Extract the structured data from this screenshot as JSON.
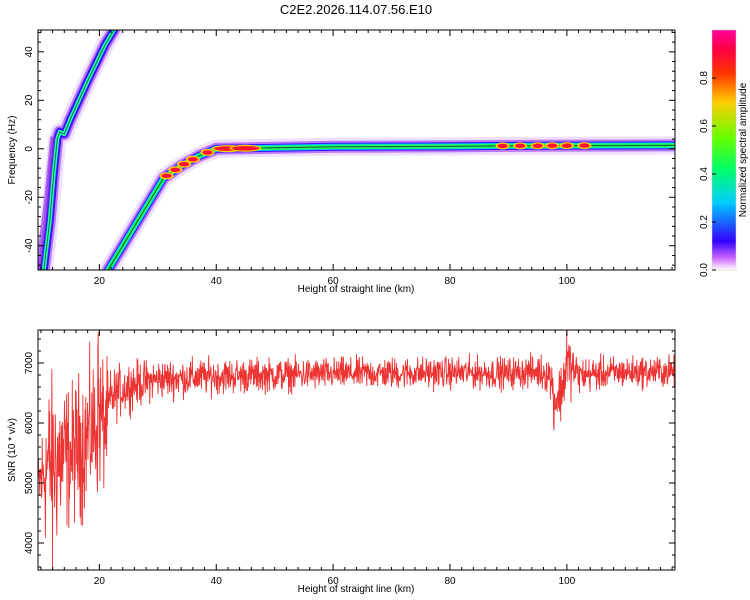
{
  "chart_data": [
    {
      "type": "heatmap",
      "title": "C2E2.2026.114.07.56.E10",
      "xlabel": "Height of straight line (km)",
      "ylabel": "Frequency (Hz)",
      "xlim": [
        9.5,
        118.5
      ],
      "ylim": [
        -50,
        49
      ],
      "xticks": [
        20,
        40,
        60,
        80,
        100
      ],
      "yticks": [
        -40,
        -20,
        0,
        20,
        40
      ],
      "colorbar": {
        "label": "Normalized spectral amplitude",
        "range": [
          0,
          1
        ],
        "ticks": [
          0.0,
          0.2,
          0.4,
          0.6,
          0.8
        ]
      },
      "features": [
        {
          "name": "frequency trace",
          "points": [
            [
              21.5,
              -50
            ],
            [
              24,
              -40
            ],
            [
              28,
              -24
            ],
            [
              31,
              -12
            ],
            [
              34,
              -7
            ],
            [
              37,
              -3
            ],
            [
              40,
              0
            ],
            [
              60,
              0.8
            ],
            [
              80,
              1.0
            ],
            [
              90,
              1.2
            ],
            [
              100,
              1.3
            ],
            [
              118.5,
              1.4
            ]
          ]
        },
        {
          "name": "rising trace",
          "points": [
            [
              10.5,
              -50
            ],
            [
              11.5,
              -30
            ],
            [
              12.2,
              -10
            ],
            [
              12.8,
              4
            ],
            [
              13.2,
              7
            ],
            [
              14,
              6
            ],
            [
              15,
              12
            ],
            [
              18,
              28
            ],
            [
              21,
              43
            ],
            [
              22.5,
              49
            ]
          ]
        }
      ],
      "peaks_x_km": [
        31.5,
        33,
        34.5,
        36,
        38.5,
        42,
        45,
        89,
        92,
        95,
        97.5,
        100,
        103
      ]
    },
    {
      "type": "line",
      "xlabel": "Height of straight line (km)",
      "ylabel": "SNR (10 * v/v)",
      "xlim": [
        9.5,
        118.5
      ],
      "ylim": [
        3550,
        7550
      ],
      "xticks": [
        20,
        40,
        60,
        80,
        100
      ],
      "yticks": [
        4000,
        5000,
        6000,
        7000
      ],
      "color": "#ee3333",
      "envelope": {
        "x": [
          9.5,
          11,
          13,
          15,
          17,
          19,
          20,
          21,
          22,
          23,
          25,
          30,
          40,
          50,
          60,
          70,
          80,
          90,
          95,
          97,
          98,
          99,
          100,
          102,
          110,
          118.5
        ],
        "mean": [
          4900,
          5300,
          5400,
          5450,
          5650,
          5900,
          6100,
          5950,
          6400,
          6500,
          6620,
          6730,
          6780,
          6800,
          6820,
          6830,
          6840,
          6830,
          6860,
          6820,
          6400,
          6500,
          7000,
          6800,
          6850,
          6860
        ],
        "spread": [
          350,
          850,
          900,
          700,
          750,
          700,
          800,
          650,
          280,
          270,
          250,
          200,
          180,
          170,
          160,
          160,
          160,
          160,
          170,
          200,
          300,
          300,
          350,
          180,
          160,
          160
        ]
      },
      "extremes": [
        {
          "x": 12,
          "y": 3560
        },
        {
          "x": 19.8,
          "y": 7520
        },
        {
          "x": 97.8,
          "y": 5880
        },
        {
          "x": 100,
          "y": 7540
        }
      ]
    }
  ]
}
